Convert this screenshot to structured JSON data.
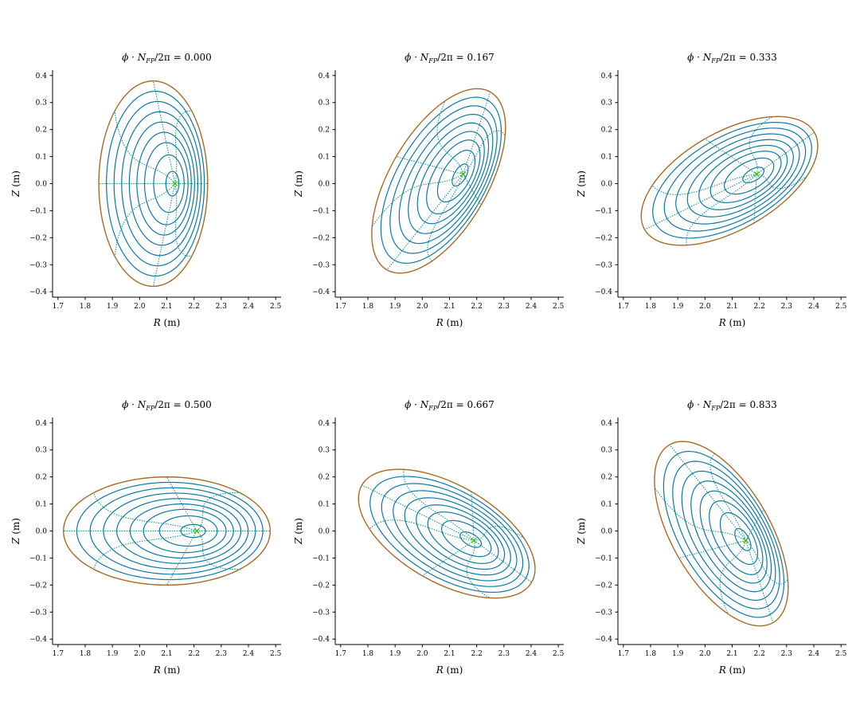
{
  "colors": {
    "surface": "#0a78a8",
    "boundary": "#a86a26",
    "theta_lines": "#0a8a8a",
    "axis_marker": "#3ec41a"
  },
  "chart_data": [
    {
      "type": "line",
      "title": "$\\phi \\cdot N_{FP}/2\\pi = 0.000$",
      "title_parts": {
        "prefix": "ϕ · N",
        "sub": "FP",
        "suffix": "/2π = 0.000"
      },
      "xlabel": "R (m)",
      "ylabel": "Z (m)",
      "xlim": [
        1.68,
        2.52
      ],
      "ylim": [
        -0.42,
        0.42
      ],
      "xticks": [
        1.7,
        1.8,
        1.9,
        2.0,
        2.1,
        2.2,
        2.3,
        2.4,
        2.5
      ],
      "yticks": [
        -0.4,
        -0.3,
        -0.2,
        -0.1,
        0.0,
        0.1,
        0.2,
        0.3,
        0.4
      ],
      "magnetic_axis": [
        2.13,
        0.0
      ],
      "boundary_center": [
        2.05,
        0.0
      ],
      "boundary_semi_axes": [
        0.2,
        0.38
      ],
      "tilt_deg": 0
    },
    {
      "type": "line",
      "title": "$\\phi \\cdot N_{FP}/2\\pi = 0.167$",
      "title_parts": {
        "prefix": "ϕ · N",
        "sub": "FP",
        "suffix": "/2π = 0.167"
      },
      "xlabel": "R (m)",
      "ylabel": "Z (m)",
      "xlim": [
        1.68,
        2.52
      ],
      "ylim": [
        -0.42,
        0.42
      ],
      "xticks": [
        1.7,
        1.8,
        1.9,
        2.0,
        2.1,
        2.2,
        2.3,
        2.4,
        2.5
      ],
      "yticks": [
        -0.4,
        -0.3,
        -0.2,
        -0.1,
        0.0,
        0.1,
        0.2,
        0.3,
        0.4
      ],
      "magnetic_axis": [
        2.15,
        0.035
      ],
      "boundary_center": [
        2.06,
        0.01
      ],
      "boundary_semi_axes": [
        0.18,
        0.38
      ],
      "tilt_deg": -30
    },
    {
      "type": "line",
      "title": "$\\phi \\cdot N_{FP}/2\\pi = 0.333$",
      "title_parts": {
        "prefix": "ϕ · N",
        "sub": "FP",
        "suffix": "/2π = 0.333"
      },
      "xlabel": "R (m)",
      "ylabel": "Z (m)",
      "xlim": [
        1.68,
        2.52
      ],
      "ylim": [
        -0.42,
        0.42
      ],
      "xticks": [
        1.7,
        1.8,
        1.9,
        2.0,
        2.1,
        2.2,
        2.3,
        2.4,
        2.5
      ],
      "yticks": [
        -0.4,
        -0.3,
        -0.2,
        -0.1,
        0.0,
        0.1,
        0.2,
        0.3,
        0.4
      ],
      "magnetic_axis": [
        2.19,
        0.035
      ],
      "boundary_center": [
        2.09,
        0.01
      ],
      "boundary_semi_axes": [
        0.36,
        0.18
      ],
      "tilt_deg": 30
    },
    {
      "type": "line",
      "title": "$\\phi \\cdot N_{FP}/2\\pi = 0.500$",
      "title_parts": {
        "prefix": "ϕ · N",
        "sub": "FP",
        "suffix": "/2π = 0.500"
      },
      "xlabel": "R (m)",
      "ylabel": "Z (m)",
      "xlim": [
        1.68,
        2.52
      ],
      "ylim": [
        -0.42,
        0.42
      ],
      "xticks": [
        1.7,
        1.8,
        1.9,
        2.0,
        2.1,
        2.2,
        2.3,
        2.4,
        2.5
      ],
      "yticks": [
        -0.4,
        -0.3,
        -0.2,
        -0.1,
        0.0,
        0.1,
        0.2,
        0.3,
        0.4
      ],
      "magnetic_axis": [
        2.21,
        0.0
      ],
      "boundary_center": [
        2.1,
        0.0
      ],
      "boundary_semi_axes": [
        0.38,
        0.2
      ],
      "tilt_deg": 0
    },
    {
      "type": "line",
      "title": "$\\phi \\cdot N_{FP}/2\\pi = 0.667$",
      "title_parts": {
        "prefix": "ϕ · N",
        "sub": "FP",
        "suffix": "/2π = 0.667"
      },
      "xlabel": "R (m)",
      "ylabel": "Z (m)",
      "xlim": [
        1.68,
        2.52
      ],
      "ylim": [
        -0.42,
        0.42
      ],
      "xticks": [
        1.7,
        1.8,
        1.9,
        2.0,
        2.1,
        2.2,
        2.3,
        2.4,
        2.5
      ],
      "yticks": [
        -0.4,
        -0.3,
        -0.2,
        -0.1,
        0.0,
        0.1,
        0.2,
        0.3,
        0.4
      ],
      "magnetic_axis": [
        2.19,
        -0.035
      ],
      "boundary_center": [
        2.09,
        -0.01
      ],
      "boundary_semi_axes": [
        0.36,
        0.18
      ],
      "tilt_deg": -30
    },
    {
      "type": "line",
      "title": "$\\phi \\cdot N_{FP}/2\\pi = 0.833$",
      "title_parts": {
        "prefix": "ϕ · N",
        "sub": "FP",
        "suffix": "/2π = 0.833"
      },
      "xlabel": "R (m)",
      "ylabel": "Z (m)",
      "xlim": [
        1.68,
        2.52
      ],
      "ylim": [
        -0.42,
        0.42
      ],
      "xticks": [
        1.7,
        1.8,
        1.9,
        2.0,
        2.1,
        2.2,
        2.3,
        2.4,
        2.5
      ],
      "yticks": [
        -0.4,
        -0.3,
        -0.2,
        -0.1,
        0.0,
        0.1,
        0.2,
        0.3,
        0.4
      ],
      "magnetic_axis": [
        2.15,
        -0.035
      ],
      "boundary_center": [
        2.06,
        -0.01
      ],
      "boundary_semi_axes": [
        0.18,
        0.38
      ],
      "tilt_deg": 30
    }
  ]
}
